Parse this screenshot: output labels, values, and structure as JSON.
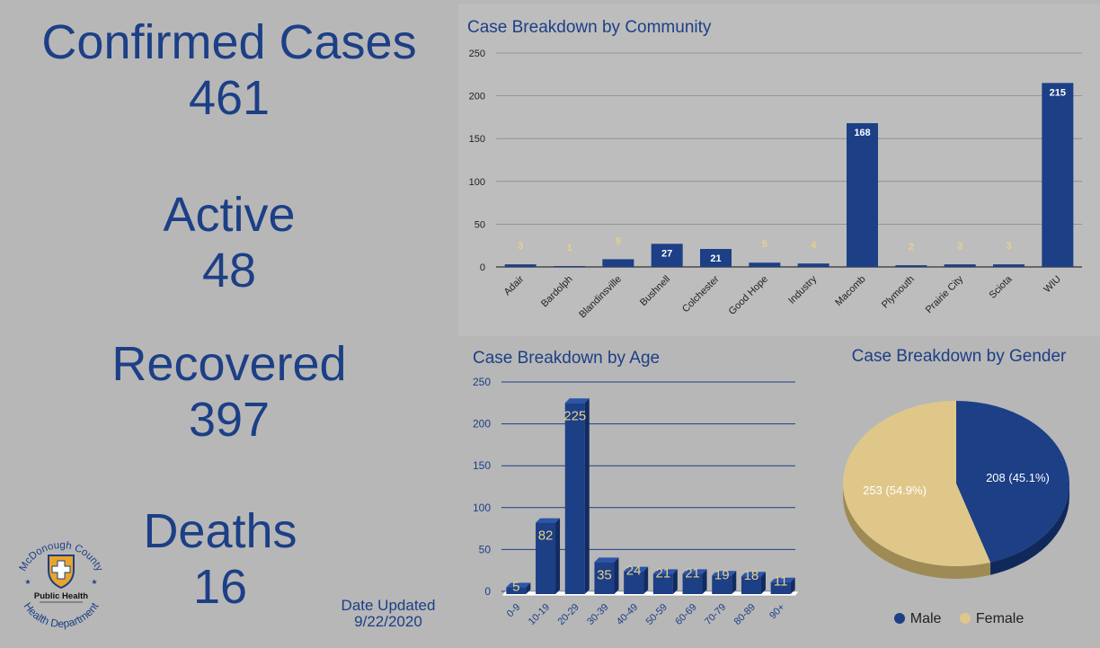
{
  "summary": {
    "confirmed_label": "Confirmed Cases",
    "confirmed_value": "461",
    "active_label": "Active",
    "active_value": "48",
    "recovered_label": "Recovered",
    "recovered_value": "397",
    "deaths_label": "Deaths",
    "deaths_value": "16",
    "date_label": "Date Updated",
    "date_value": "9/22/2020"
  },
  "logo": {
    "arc_top": "McDonough County",
    "arc_bottom": "Health Department",
    "center": "Public Health"
  },
  "colors": {
    "navy": "#1c3f86",
    "gold_label": "#e8d08a",
    "pie_female": "#dfc78a",
    "background": "#b7b7b7"
  },
  "chart_data": [
    {
      "type": "bar",
      "title": "Case Breakdown by Community",
      "categories": [
        "Adair",
        "Bardolph",
        "Blandinsville",
        "Bushnell",
        "Colchester",
        "Good Hope",
        "Industry",
        "Macomb",
        "Plymouth",
        "Prairie City",
        "Sciota",
        "WIU"
      ],
      "values": [
        3,
        1,
        9,
        27,
        21,
        5,
        4,
        168,
        2,
        3,
        3,
        215
      ],
      "ylim": [
        0,
        250
      ],
      "yticks": [
        0,
        50,
        100,
        150,
        200,
        250
      ],
      "grid": true
    },
    {
      "type": "bar",
      "title": "Case Breakdown by Age",
      "categories": [
        "0-9",
        "10-19",
        "20-29",
        "30-39",
        "40-49",
        "50-59",
        "60-69",
        "70-79",
        "80-89",
        "90+"
      ],
      "values": [
        5,
        82,
        225,
        35,
        24,
        21,
        21,
        19,
        18,
        11
      ],
      "ylim": [
        0,
        250
      ],
      "yticks": [
        0,
        50,
        100,
        150,
        200,
        250
      ],
      "grid": true
    },
    {
      "type": "pie",
      "title": "Case Breakdown by Gender",
      "slices": [
        {
          "name": "Male",
          "value": 208,
          "label": "208 (45.1%)",
          "color": "#1c3f86"
        },
        {
          "name": "Female",
          "value": 253,
          "label": "253 (54.9%)",
          "color": "#dfc78a"
        }
      ],
      "legend": "bottom"
    }
  ]
}
